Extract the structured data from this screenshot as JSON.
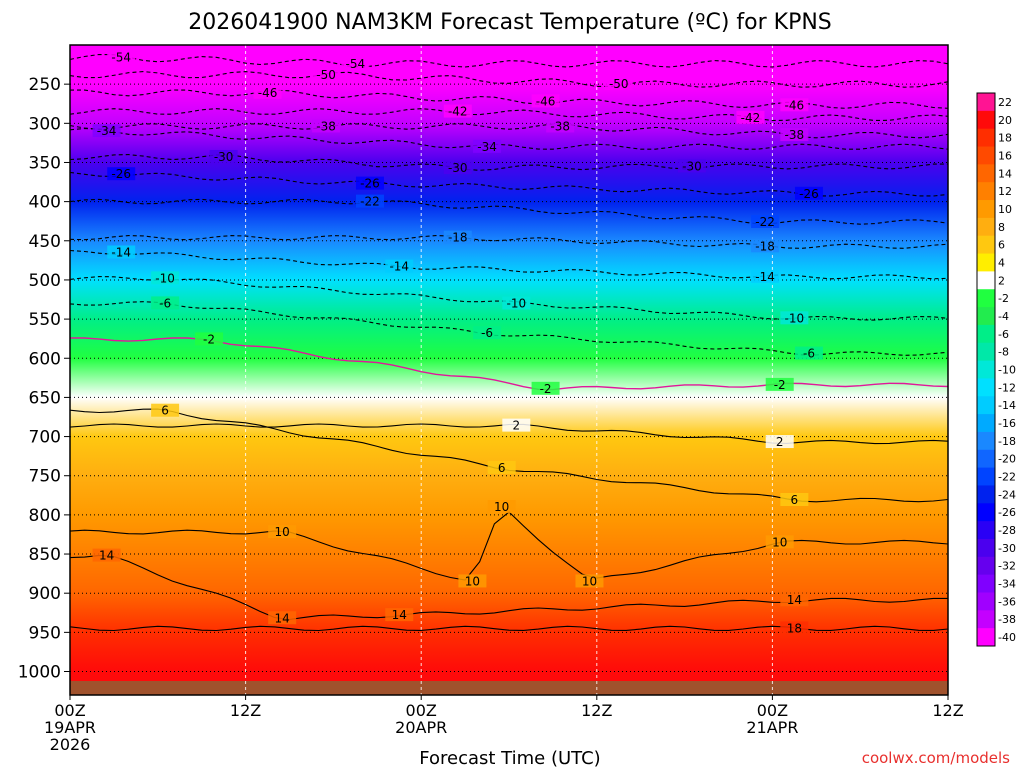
{
  "chart_data": {
    "type": "heatmap",
    "title": "2026041900 NAM3KM Forecast Temperature (ºC) for KPNS",
    "xlabel": "Forecast Time (UTC)",
    "ylabel": "",
    "x_hours_range": [
      0,
      60
    ],
    "x_ticks": [
      {
        "hour": 0,
        "lines": [
          "00Z",
          "19APR",
          "2026"
        ]
      },
      {
        "hour": 12,
        "lines": [
          "12Z"
        ]
      },
      {
        "hour": 24,
        "lines": [
          "00Z",
          "20APR"
        ]
      },
      {
        "hour": 36,
        "lines": [
          "12Z"
        ]
      },
      {
        "hour": 48,
        "lines": [
          "00Z",
          "21APR"
        ]
      },
      {
        "hour": 60,
        "lines": [
          "12Z"
        ]
      }
    ],
    "y_pressure_range_hPa": [
      200,
      1030
    ],
    "y_ticks": [
      "250",
      "300",
      "350",
      "400",
      "450",
      "500",
      "550",
      "600",
      "650",
      "700",
      "750",
      "800",
      "850",
      "900",
      "950",
      "1000"
    ],
    "y_tick_values": [
      250,
      300,
      350,
      400,
      450,
      500,
      550,
      600,
      650,
      700,
      750,
      800,
      850,
      900,
      950,
      1000
    ],
    "colorbar_labels": [
      "22",
      "20",
      "18",
      "16",
      "14",
      "12",
      "10",
      "8",
      "6",
      "4",
      "2",
      "-2",
      "-4",
      "-6",
      "-8",
      "-10",
      "-12",
      "-14",
      "-16",
      "-18",
      "-20",
      "-22",
      "-24",
      "-26",
      "-28",
      "-30",
      "-32",
      "-34",
      "-36",
      "-38",
      "-40"
    ],
    "colorbar_colors": [
      "#ff1493",
      "#ff0a0a",
      "#ff2e00",
      "#ff4a00",
      "#ff6600",
      "#ff8000",
      "#ff9a00",
      "#ffae10",
      "#ffc810",
      "#ffee00",
      "#ffffff",
      "#20ff40",
      "#22ec4e",
      "#00ee88",
      "#00e8a8",
      "#00e8d8",
      "#00e0ff",
      "#00ccff",
      "#00aaff",
      "#1a88ff",
      "#1066ff",
      "#0044ff",
      "#0022ee",
      "#0000ff",
      "#2a00f5",
      "#4b00ee",
      "#6600ee",
      "#8000ff",
      "#a000ff",
      "#c400ff",
      "#ff00ff"
    ],
    "level_profile": [
      {
        "p": 200,
        "t": -56
      },
      {
        "p": 250,
        "t": -47
      },
      {
        "p": 300,
        "t": -38
      },
      {
        "p": 350,
        "t": -30
      },
      {
        "p": 400,
        "t": -23
      },
      {
        "p": 450,
        "t": -17
      },
      {
        "p": 500,
        "t": -11
      },
      {
        "p": 550,
        "t": -6
      },
      {
        "p": 600,
        "t": -1
      },
      {
        "p": 650,
        "t": 3
      },
      {
        "p": 700,
        "t": 6
      },
      {
        "p": 750,
        "t": 9
      },
      {
        "p": 800,
        "t": 11
      },
      {
        "p": 850,
        "t": 13
      },
      {
        "p": 900,
        "t": 15
      },
      {
        "p": 950,
        "t": 18
      },
      {
        "p": 1000,
        "t": 21
      }
    ],
    "contours": [
      {
        "level": -54,
        "labels": [
          {
            "hour": 3.5,
            "p": 216,
            "text": "-54"
          },
          {
            "hour": 19.5,
            "p": 224,
            "text": "-54"
          }
        ]
      },
      {
        "level": -50,
        "labels": [
          {
            "hour": 17.5,
            "p": 238,
            "text": "-50"
          },
          {
            "hour": 37.5,
            "p": 250,
            "text": "-50"
          }
        ]
      },
      {
        "level": -46,
        "labels": [
          {
            "hour": 13.5,
            "p": 261,
            "text": "-46"
          },
          {
            "hour": 32.5,
            "p": 272,
            "text": "-46"
          },
          {
            "hour": 49.5,
            "p": 277,
            "text": "-46"
          }
        ]
      },
      {
        "level": -42,
        "labels": [
          {
            "hour": 26.5,
            "p": 285,
            "text": "-42"
          },
          {
            "hour": 46.5,
            "p": 293,
            "text": "-42"
          }
        ]
      },
      {
        "level": -38,
        "labels": [
          {
            "hour": 17.5,
            "p": 304,
            "text": "-38"
          },
          {
            "hour": 33.5,
            "p": 304,
            "text": "-38"
          },
          {
            "hour": 49.5,
            "p": 315,
            "text": "-38"
          }
        ]
      },
      {
        "level": -34,
        "labels": [
          {
            "hour": 2.5,
            "p": 310,
            "text": "-34"
          },
          {
            "hour": 28.5,
            "p": 330,
            "text": "-34"
          }
        ]
      },
      {
        "level": -30,
        "labels": [
          {
            "hour": 10.5,
            "p": 343,
            "text": "-30"
          },
          {
            "hour": 26.5,
            "p": 357,
            "text": "-30"
          },
          {
            "hour": 42.5,
            "p": 355,
            "text": "-30"
          }
        ]
      },
      {
        "level": -26,
        "labels": [
          {
            "hour": 3.5,
            "p": 365,
            "text": "-26"
          },
          {
            "hour": 20.5,
            "p": 377,
            "text": "-26"
          },
          {
            "hour": 50.5,
            "p": 390,
            "text": "-26"
          }
        ]
      },
      {
        "level": -22,
        "labels": [
          {
            "hour": 20.5,
            "p": 400,
            "text": "-22"
          },
          {
            "hour": 47.5,
            "p": 426,
            "text": "-22"
          }
        ]
      },
      {
        "level": -18,
        "labels": [
          {
            "hour": 26.5,
            "p": 446,
            "text": "-18"
          },
          {
            "hour": 47.5,
            "p": 457,
            "text": "-18"
          }
        ]
      },
      {
        "level": -14,
        "labels": [
          {
            "hour": 3.5,
            "p": 465,
            "text": "-14"
          },
          {
            "hour": 22.5,
            "p": 483,
            "text": "-14"
          },
          {
            "hour": 47.5,
            "p": 496,
            "text": "-14"
          }
        ]
      },
      {
        "level": -10,
        "labels": [
          {
            "hour": 6.5,
            "p": 498,
            "text": "-10"
          },
          {
            "hour": 30.5,
            "p": 530,
            "text": "-10"
          },
          {
            "hour": 49.5,
            "p": 549,
            "text": "-10"
          }
        ]
      },
      {
        "level": -6,
        "labels": [
          {
            "hour": 6.5,
            "p": 530,
            "text": "-6"
          },
          {
            "hour": 28.5,
            "p": 568,
            "text": "-6"
          },
          {
            "hour": 50.5,
            "p": 594,
            "text": "-6"
          }
        ]
      },
      {
        "level": -2,
        "labels": [
          {
            "hour": 9.5,
            "p": 576,
            "text": "-2"
          },
          {
            "hour": 32.5,
            "p": 639,
            "text": "-2"
          },
          {
            "hour": 48.5,
            "p": 634,
            "text": "-2"
          }
        ]
      },
      {
        "level": 2,
        "labels": [
          {
            "hour": 30.5,
            "p": 686,
            "text": "2"
          },
          {
            "hour": 48.5,
            "p": 707,
            "text": "2"
          }
        ]
      },
      {
        "level": 6,
        "labels": [
          {
            "hour": 6.5,
            "p": 667,
            "text": "6"
          },
          {
            "hour": 29.5,
            "p": 740,
            "text": "6"
          },
          {
            "hour": 49.5,
            "p": 781,
            "text": "6"
          }
        ]
      },
      {
        "level": 10,
        "labels": [
          {
            "hour": 14.5,
            "p": 822,
            "text": "10"
          },
          {
            "hour": 29.5,
            "p": 790,
            "text": "10"
          },
          {
            "hour": 27.5,
            "p": 885,
            "text": "10"
          },
          {
            "hour": 35.5,
            "p": 885,
            "text": "10"
          },
          {
            "hour": 48.5,
            "p": 835,
            "text": "10"
          }
        ]
      },
      {
        "level": 14,
        "labels": [
          {
            "hour": 2.5,
            "p": 852,
            "text": "14"
          },
          {
            "hour": 14.5,
            "p": 932,
            "text": "14"
          },
          {
            "hour": 22.5,
            "p": 928,
            "text": "14"
          },
          {
            "hour": 49.5,
            "p": 909,
            "text": "14"
          }
        ]
      },
      {
        "level": 18,
        "labels": [
          {
            "hour": 49.5,
            "p": 945,
            "text": "18"
          }
        ]
      }
    ]
  },
  "credit": "coolwx.com/models"
}
